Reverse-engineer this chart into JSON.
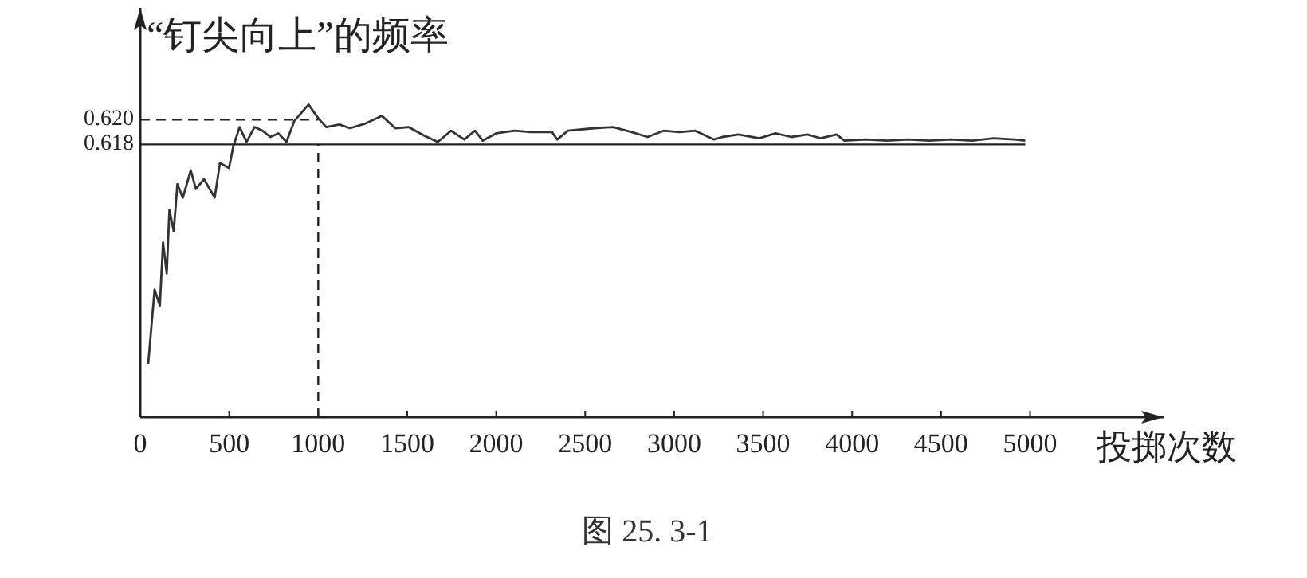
{
  "chart_data": {
    "type": "line",
    "xlabel": "投掷次数",
    "ylabel": "“钉尖向上”的频率",
    "annotations": [
      "图 25. 3-1"
    ],
    "xlim": [
      0,
      5750
    ],
    "ylim": [
      0.596,
      0.629
    ],
    "xticks": [
      0,
      500,
      1000,
      1500,
      2000,
      2500,
      3000,
      3500,
      4000,
      4500,
      5000
    ],
    "yticks": [
      {
        "value": 0.618,
        "label": "0.618"
      },
      {
        "value": 0.62,
        "label": "0.620"
      }
    ],
    "ref_lines": [
      {
        "axis": "y",
        "value": 0.618,
        "label": null,
        "line_style": "solid"
      },
      {
        "axis": "y",
        "value": 0.62,
        "label": null,
        "line_style": "dashed"
      },
      {
        "axis": "x",
        "value": 1000,
        "label": null,
        "line_style": "dashed"
      }
    ],
    "series": [
      {
        "color": "#333333",
        "x": [
          45,
          81,
          110,
          128,
          149,
          164,
          188,
          209,
          239,
          284,
          313,
          358,
          418,
          448,
          499,
          522,
          558,
          597,
          642,
          687,
          731,
          776,
          821,
          866,
          946,
          1000,
          1045,
          1119,
          1179,
          1269,
          1358,
          1433,
          1507,
          1597,
          1672,
          1746,
          1821,
          1881,
          1925,
          2000,
          2104,
          2194,
          2313,
          2343,
          2403,
          2552,
          2657,
          2761,
          2851,
          2940,
          3030,
          3119,
          3224,
          3271,
          3360,
          3479,
          3569,
          3659,
          3748,
          3823,
          3912,
          3957,
          4077,
          4196,
          4316,
          4435,
          4555,
          4674,
          4794,
          4913,
          4973
        ],
        "values": [
          0.6003,
          0.6063,
          0.605,
          0.6101,
          0.6076,
          0.6127,
          0.611,
          0.6148,
          0.6137,
          0.6159,
          0.6144,
          0.6152,
          0.6137,
          0.6165,
          0.6161,
          0.6178,
          0.6194,
          0.6182,
          0.6194,
          0.6191,
          0.6186,
          0.6189,
          0.6182,
          0.6199,
          0.6212,
          0.6201,
          0.6194,
          0.6196,
          0.6193,
          0.6197,
          0.6203,
          0.6193,
          0.6194,
          0.6187,
          0.6182,
          0.6191,
          0.6184,
          0.6191,
          0.6183,
          0.6189,
          0.6191,
          0.619,
          0.619,
          0.6184,
          0.6191,
          0.6193,
          0.6194,
          0.619,
          0.6186,
          0.6191,
          0.619,
          0.6191,
          0.6184,
          0.6186,
          0.6188,
          0.6185,
          0.6189,
          0.6186,
          0.6188,
          0.6185,
          0.6188,
          0.6183,
          0.6184,
          0.6183,
          0.6184,
          0.6183,
          0.6184,
          0.6183,
          0.6185,
          0.6184,
          0.6183
        ]
      }
    ]
  }
}
